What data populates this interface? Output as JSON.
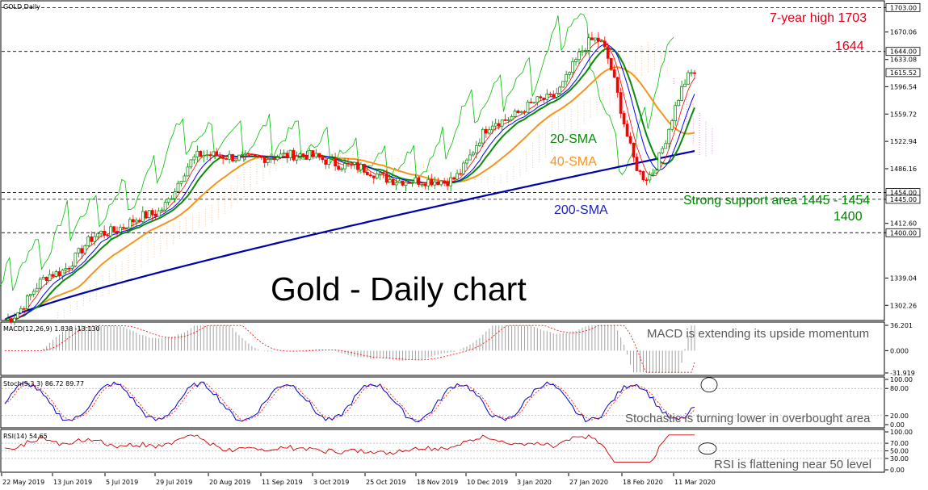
{
  "symbol_label": "GOLD,Daily",
  "title": "Gold - Daily chart",
  "colors": {
    "up": "#008000",
    "down": "#ff0000",
    "sma20": "#0a8a0a",
    "sma40": "#f7941d",
    "sma200": "#0000aa",
    "tenkan": "#ff0000",
    "kijun": "#0000ff",
    "chikou": "#00c000",
    "cloud_bull": "#f4c69a",
    "cloud_bear": "#e085e0",
    "macd_hist": "#a0a0a0",
    "macd_signal": "#ff0000",
    "stoch_main": "#0000cc",
    "stoch_signal": "#ff0000",
    "rsi": "#cc0000"
  },
  "price_axis": {
    "ticks": [
      "1703.00",
      "1670.06",
      "1633.08",
      "1596.54",
      "1559.72",
      "1522.94",
      "1486.16",
      "1454.00",
      "1445.00",
      "1412.60",
      "1400.00",
      "1339.04",
      "1302.26"
    ],
    "tick_values": [
      1703,
      1670.06,
      1633.08,
      1596.54,
      1559.72,
      1522.94,
      1486.16,
      1454,
      1445,
      1412.6,
      1400,
      1339.04,
      1302.26
    ],
    "boxed_values": [
      "1644.00",
      "1615.52"
    ],
    "boxed_numbers": [
      1644,
      1615.52
    ],
    "min": 1283,
    "max": 1711
  },
  "date_axis": [
    "22 May 2019",
    "13 Jun 2019",
    "5 Jul 2019",
    "29 Jul 2019",
    "20 Aug 2019",
    "11 Sep 2019",
    "3 Oct 2019",
    "25 Oct 2019",
    "18 Nov 2019",
    "10 Dec 2019",
    "3 Jan 2020",
    "27 Jan 2020",
    "18 Feb 2020",
    "11 Mar 2020"
  ],
  "levels": [
    1703,
    1644,
    1454,
    1445,
    1400
  ],
  "annotations": {
    "high": "7-year high 1703",
    "r1644": "1644",
    "support": "Strong support area 1445 - 1454",
    "s1400": "1400",
    "sma20": "20-SMA",
    "sma40": "40-SMA",
    "sma200": "200-SMA",
    "macd_note": "MACD is extending its upside momentum",
    "stoch_note": "Stochastic is turning lower in overbought area",
    "rsi_note": "RSI is flattening near 50 level"
  },
  "macd": {
    "label": "MACD(12,26,9) 1.838 -13.130",
    "ticks": [
      "36.201",
      "0.000",
      "-31.919"
    ],
    "tick_values": [
      36.201,
      0,
      -31.919
    ]
  },
  "stoch": {
    "label": "Stoch(5,3,3) 86.72 89.77",
    "ticks": [
      "100.00",
      "80.00",
      "20.00",
      "0.00"
    ],
    "tick_values": [
      100,
      80,
      20,
      0
    ]
  },
  "rsi": {
    "label": "RSI(14) 54.65",
    "ticks": [
      "100.00",
      "70.00",
      "50.00",
      "30.00",
      "0.00"
    ],
    "tick_values": [
      100,
      70,
      50,
      30,
      0
    ]
  },
  "chart_data": {
    "type": "candlestick",
    "title": "Gold - Daily chart",
    "x": [
      "22 May 2019",
      "13 Jun 2019",
      "5 Jul 2019",
      "29 Jul 2019",
      "20 Aug 2019",
      "11 Sep 2019",
      "3 Oct 2019",
      "25 Oct 2019",
      "18 Nov 2019",
      "10 Dec 2019",
      "3 Jan 2020",
      "27 Jan 2020",
      "18 Feb 2020",
      "11 Mar 2020"
    ],
    "close_anchors": [
      1283,
      1345,
      1400,
      1425,
      1505,
      1500,
      1505,
      1490,
      1470,
      1470,
      1550,
      1580,
      1660,
      1475,
      1615.52
    ],
    "series": [
      {
        "name": "20-SMA"
      },
      {
        "name": "40-SMA"
      },
      {
        "name": "200-SMA"
      }
    ],
    "ylim": [
      1283,
      1711
    ]
  }
}
